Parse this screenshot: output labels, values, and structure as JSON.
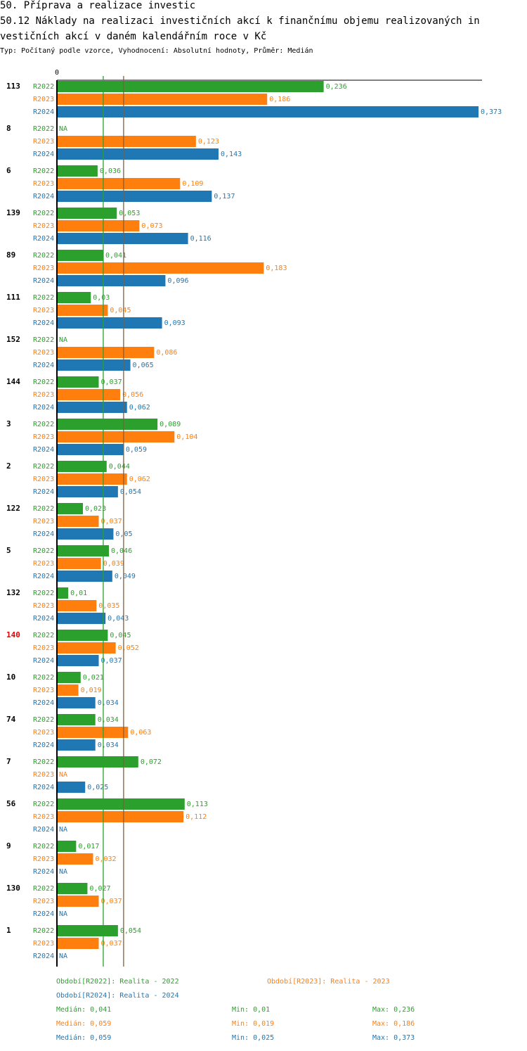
{
  "header": {
    "title_line1": "50. Příprava a realizace investic",
    "title_line2": "50.12 Náklady na realizaci investičních akcí k finančnímu objemu realizovaných in",
    "title_line3": "vestičních akcí v daném kalendářním roce v Kč",
    "subtitle": "Typ: Počítaný podle vzorce, Vyhodnocení: Absolutní hodnoty, Průměr: Medián"
  },
  "colors": {
    "R2022": "#2ca02c",
    "R2023": "#ff7f0e",
    "R2024": "#1f77b4",
    "highlight_label": "#e60000",
    "median_line_green": "#2ca02c",
    "median_line_brown": "#7f5f3f"
  },
  "chart_data": {
    "type": "bar",
    "orientation": "horizontal",
    "xlim": [
      0,
      0.373
    ],
    "x_tick_label": "0",
    "series_names": [
      "R2022",
      "R2023",
      "R2024"
    ],
    "median_lines": [
      0.041,
      0.059
    ],
    "highlight_category": "140",
    "groups": [
      {
        "label": "113",
        "values": [
          0.236,
          0.186,
          0.373
        ],
        "value_labels": [
          "0,236",
          "0,186",
          "0,373"
        ]
      },
      {
        "label": "8",
        "values": [
          null,
          0.123,
          0.143
        ],
        "value_labels": [
          "NA",
          "0,123",
          "0,143"
        ]
      },
      {
        "label": "6",
        "values": [
          0.036,
          0.109,
          0.137
        ],
        "value_labels": [
          "0,036",
          "0,109",
          "0,137"
        ]
      },
      {
        "label": "139",
        "values": [
          0.053,
          0.073,
          0.116
        ],
        "value_labels": [
          "0,053",
          "0,073",
          "0,116"
        ]
      },
      {
        "label": "89",
        "values": [
          0.041,
          0.183,
          0.096
        ],
        "value_labels": [
          "0,041",
          "0,183",
          "0,096"
        ]
      },
      {
        "label": "111",
        "values": [
          0.03,
          0.045,
          0.093
        ],
        "value_labels": [
          "0,03",
          "0,045",
          "0,093"
        ]
      },
      {
        "label": "152",
        "values": [
          null,
          0.086,
          0.065
        ],
        "value_labels": [
          "NA",
          "0,086",
          "0,065"
        ]
      },
      {
        "label": "144",
        "values": [
          0.037,
          0.056,
          0.062
        ],
        "value_labels": [
          "0,037",
          "0,056",
          "0,062"
        ]
      },
      {
        "label": "3",
        "values": [
          0.089,
          0.104,
          0.059
        ],
        "value_labels": [
          "0,089",
          "0,104",
          "0,059"
        ]
      },
      {
        "label": "2",
        "values": [
          0.044,
          0.062,
          0.054
        ],
        "value_labels": [
          "0,044",
          "0,062",
          "0,054"
        ]
      },
      {
        "label": "122",
        "values": [
          0.023,
          0.037,
          0.05
        ],
        "value_labels": [
          "0,023",
          "0,037",
          "0,05"
        ]
      },
      {
        "label": "5",
        "values": [
          0.046,
          0.039,
          0.049
        ],
        "value_labels": [
          "0,046",
          "0,039",
          "0,049"
        ]
      },
      {
        "label": "132",
        "values": [
          0.01,
          0.035,
          0.043
        ],
        "value_labels": [
          "0,01",
          "0,035",
          "0,043"
        ]
      },
      {
        "label": "140",
        "values": [
          0.045,
          0.052,
          0.037
        ],
        "value_labels": [
          "0,045",
          "0,052",
          "0,037"
        ]
      },
      {
        "label": "10",
        "values": [
          0.021,
          0.019,
          0.034
        ],
        "value_labels": [
          "0,021",
          "0,019",
          "0,034"
        ]
      },
      {
        "label": "74",
        "values": [
          0.034,
          0.063,
          0.034
        ],
        "value_labels": [
          "0,034",
          "0,063",
          "0,034"
        ]
      },
      {
        "label": "7",
        "values": [
          0.072,
          null,
          0.025
        ],
        "value_labels": [
          "0,072",
          "NA",
          "0,025"
        ]
      },
      {
        "label": "56",
        "values": [
          0.113,
          0.112,
          null
        ],
        "value_labels": [
          "0,113",
          "0,112",
          "NA"
        ]
      },
      {
        "label": "9",
        "values": [
          0.017,
          0.032,
          null
        ],
        "value_labels": [
          "0,017",
          "0,032",
          "NA"
        ]
      },
      {
        "label": "130",
        "values": [
          0.027,
          0.037,
          null
        ],
        "value_labels": [
          "0,027",
          "0,037",
          "NA"
        ]
      },
      {
        "label": "1",
        "values": [
          0.054,
          0.037,
          null
        ],
        "value_labels": [
          "0,054",
          "0,037",
          "NA"
        ]
      }
    ]
  },
  "legend": {
    "r2022": "Období[R2022]: Realita - 2022",
    "r2023": "Období[R2023]: Realita - 2023",
    "r2024": "Období[R2024]: Realita - 2024"
  },
  "stats": [
    {
      "median": "Medián: 0,041",
      "min": "Min: 0,01",
      "max": "Max: 0,236"
    },
    {
      "median": "Medián: 0,059",
      "min": "Min: 0,019",
      "max": "Max: 0,186"
    },
    {
      "median": "Medián: 0,059",
      "min": "Min: 0,025",
      "max": "Max: 0,373"
    }
  ]
}
